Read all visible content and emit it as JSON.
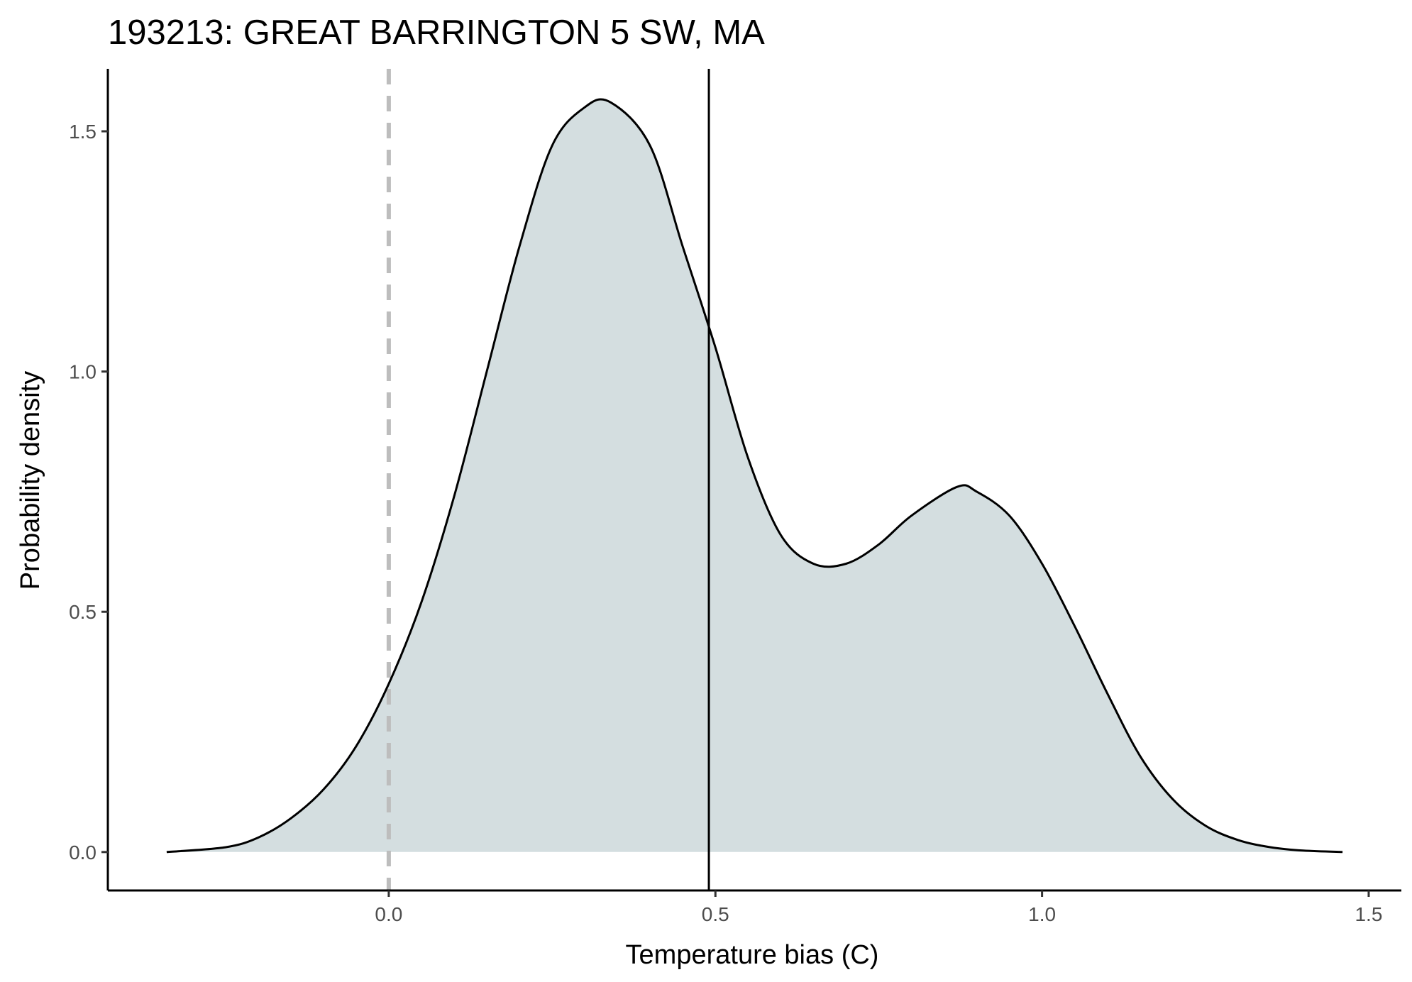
{
  "chart_data": {
    "type": "area",
    "title": "193213: GREAT BARRINGTON 5 SW, MA",
    "xlabel": "Temperature bias (C)",
    "ylabel": "Probability density",
    "xlim": [
      -0.43,
      1.55
    ],
    "ylim": [
      -0.08,
      1.63
    ],
    "x_ticks": [
      0.0,
      0.5,
      1.0,
      1.5
    ],
    "x_tick_labels": [
      "0.0",
      "0.5",
      "1.0",
      "1.5"
    ],
    "y_ticks": [
      0.0,
      0.5,
      1.0,
      1.5
    ],
    "y_tick_labels": [
      "0.0",
      "0.5",
      "1.0",
      "1.5"
    ],
    "grid": false,
    "legend": "none",
    "series": [
      {
        "x": [
          -0.34,
          -0.25,
          -0.2,
          -0.15,
          -0.1,
          -0.05,
          0.0,
          0.05,
          0.1,
          0.15,
          0.2,
          0.25,
          0.3,
          0.34,
          0.4,
          0.45,
          0.5,
          0.55,
          0.6,
          0.65,
          0.7,
          0.75,
          0.8,
          0.87,
          0.9,
          0.95,
          1.0,
          1.05,
          1.1,
          1.15,
          1.2,
          1.25,
          1.3,
          1.35,
          1.4,
          1.46
        ],
        "y": [
          0.0,
          0.01,
          0.03,
          0.07,
          0.13,
          0.22,
          0.35,
          0.52,
          0.74,
          1.0,
          1.26,
          1.47,
          1.55,
          1.56,
          1.47,
          1.26,
          1.05,
          0.82,
          0.66,
          0.6,
          0.6,
          0.64,
          0.7,
          0.76,
          0.75,
          0.7,
          0.6,
          0.47,
          0.33,
          0.2,
          0.11,
          0.055,
          0.025,
          0.01,
          0.003,
          0.0
        ]
      }
    ],
    "reference_lines": [
      {
        "x": 0.0,
        "style": "dashed",
        "color": "#bdbdbd"
      },
      {
        "x": 0.49,
        "style": "solid",
        "color": "#000000"
      }
    ],
    "colors": {
      "fill": "#d4dee0",
      "line": "#000000",
      "axis": "#000000",
      "tick_text": "#4d4d4d"
    }
  }
}
